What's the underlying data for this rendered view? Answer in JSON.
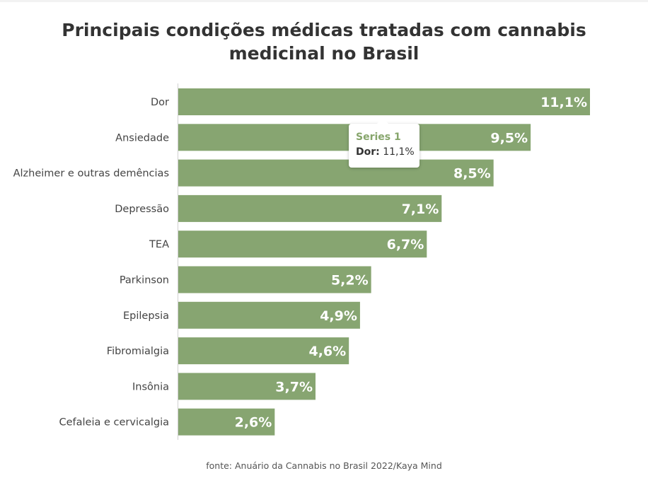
{
  "title": "Principais condições médicas tratadas com cannabis medicinal no Brasil",
  "source": "fonte: Anuário da Cannabis no Brasil 2022/Kaya Mind",
  "colors": {
    "bar": "#87a571",
    "label": "#ffffff",
    "axis": "#d0d0d0",
    "tooltip_series": "#86a56b"
  },
  "tooltip": {
    "series": "Series 1",
    "category": "Dor:",
    "value": "11,1%"
  },
  "chart_data": {
    "type": "bar",
    "orientation": "horizontal",
    "categories": [
      "Dor",
      "Ansiedade",
      "Alzheimer e outras demências",
      "Depressão",
      "TEA",
      "Parkinson",
      "Epilepsia",
      "Fibromialgia",
      "Insônia",
      "Cefaleia e cervicalgia"
    ],
    "series": [
      {
        "values": [
          11.1,
          9.5,
          8.5,
          7.1,
          6.7,
          5.2,
          4.9,
          4.6,
          3.7,
          2.6
        ]
      }
    ],
    "value_labels": [
      "11,1%",
      "9,5%",
      "8,5%",
      "7,1%",
      "6,7%",
      "5,2%",
      "4,9%",
      "4,6%",
      "3,7%",
      "2,6%"
    ],
    "xlim": [
      0,
      11.1
    ],
    "grid": false,
    "legend": "none"
  }
}
